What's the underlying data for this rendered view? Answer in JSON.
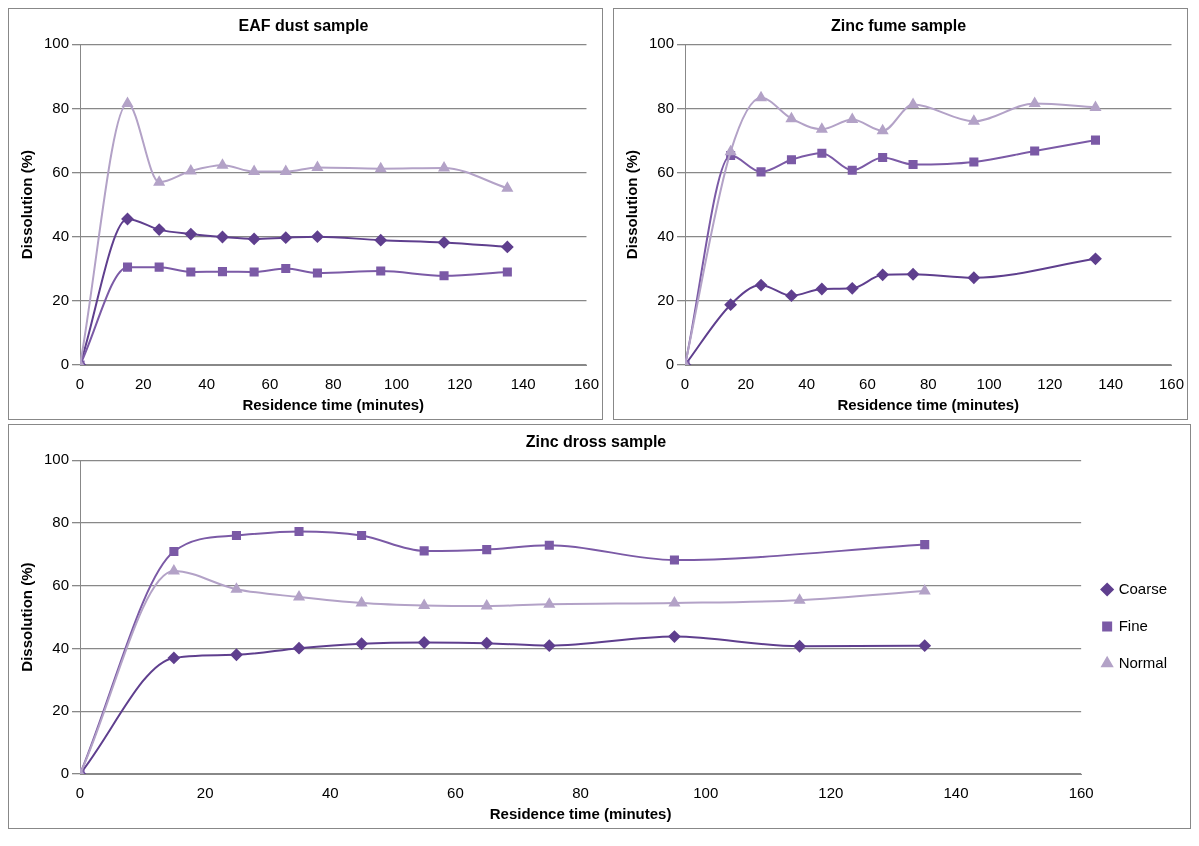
{
  "chart_data": [
    {
      "type": "line",
      "title": "EAF dust sample",
      "xlabel": "Residence time (minutes)",
      "ylabel": "Dissolution (%)",
      "x": [
        0,
        15,
        25,
        35,
        45,
        55,
        65,
        75,
        95,
        115,
        135
      ],
      "xlim": [
        0,
        160
      ],
      "xticks": [
        0,
        20,
        40,
        60,
        80,
        100,
        120,
        140,
        160
      ],
      "ylim": [
        0,
        100
      ],
      "yticks": [
        0,
        20,
        40,
        60,
        80,
        100
      ],
      "grid": "y",
      "legend": false,
      "series": [
        {
          "color": "#5f3f8e",
          "marker": "diamond",
          "values": [
            0,
            45.5,
            42.2,
            40.8,
            39.9,
            39.3,
            39.7,
            40,
            38.9,
            38.2,
            36.8
          ]
        },
        {
          "color": "#7b5aa6",
          "marker": "square",
          "values": [
            0,
            30.5,
            30.5,
            29,
            29.1,
            29,
            30.1,
            28.7,
            29.3,
            27.8,
            29
          ]
        },
        {
          "color": "#b3a2c7",
          "marker": "triangle",
          "values": [
            0,
            81.5,
            57,
            60.5,
            62.3,
            60.3,
            60.3,
            61.6,
            61.2,
            61.4,
            55.1
          ]
        }
      ]
    },
    {
      "type": "line",
      "title": "Zinc fume sample",
      "xlabel": "Residence time (minutes)",
      "ylabel": "Dissolution (%)",
      "x": [
        0,
        15,
        25,
        35,
        45,
        55,
        65,
        75,
        95,
        115,
        135
      ],
      "xlim": [
        0,
        160
      ],
      "xticks": [
        0,
        20,
        40,
        60,
        80,
        100,
        120,
        140,
        160
      ],
      "ylim": [
        0,
        100
      ],
      "yticks": [
        0,
        20,
        40,
        60,
        80,
        100
      ],
      "grid": "y",
      "legend": false,
      "series": [
        {
          "color": "#5f3f8e",
          "marker": "diamond",
          "values": [
            0,
            18.8,
            24.9,
            21.6,
            23.7,
            23.9,
            28.1,
            28.3,
            27.2,
            null,
            33.1
          ]
        },
        {
          "color": "#7b5aa6",
          "marker": "square",
          "values": [
            0,
            65.3,
            60.2,
            64,
            66,
            60.7,
            64.7,
            62.5,
            63.3,
            66.7,
            70.1
          ]
        },
        {
          "color": "#b3a2c7",
          "marker": "triangle",
          "values": [
            0,
            66.5,
            83.3,
            76.8,
            73.5,
            76.5,
            73,
            81.2,
            76,
            81.5,
            80.3
          ]
        }
      ]
    },
    {
      "type": "line",
      "title": "Zinc dross sample",
      "xlabel": "Residence time (minutes)",
      "ylabel": "Dissolution (%)",
      "x": [
        0,
        15,
        25,
        35,
        45,
        55,
        65,
        75,
        95,
        115,
        135
      ],
      "xlim": [
        0,
        160
      ],
      "xticks": [
        0,
        20,
        40,
        60,
        80,
        100,
        120,
        140,
        160
      ],
      "ylim": [
        0,
        100
      ],
      "yticks": [
        0,
        20,
        40,
        60,
        80,
        100
      ],
      "grid": "y",
      "legend": "right",
      "series": [
        {
          "name": "Coarse",
          "color": "#5f3f8e",
          "marker": "diamond",
          "values": [
            0,
            37,
            38,
            40.1,
            41.5,
            41.9,
            41.7,
            40.9,
            43.8,
            40.7,
            40.9
          ]
        },
        {
          "name": "Fine",
          "color": "#7b5aa6",
          "marker": "square",
          "values": [
            0,
            70.9,
            76,
            77.3,
            76,
            71.1,
            71.5,
            72.9,
            68.2,
            null,
            73.1
          ]
        },
        {
          "name": "Normal",
          "color": "#b3a2c7",
          "marker": "triangle",
          "values": [
            0,
            64.7,
            58.9,
            56.4,
            54.5,
            53.7,
            53.5,
            54.1,
            54.5,
            55.4,
            58.3
          ]
        }
      ]
    }
  ]
}
